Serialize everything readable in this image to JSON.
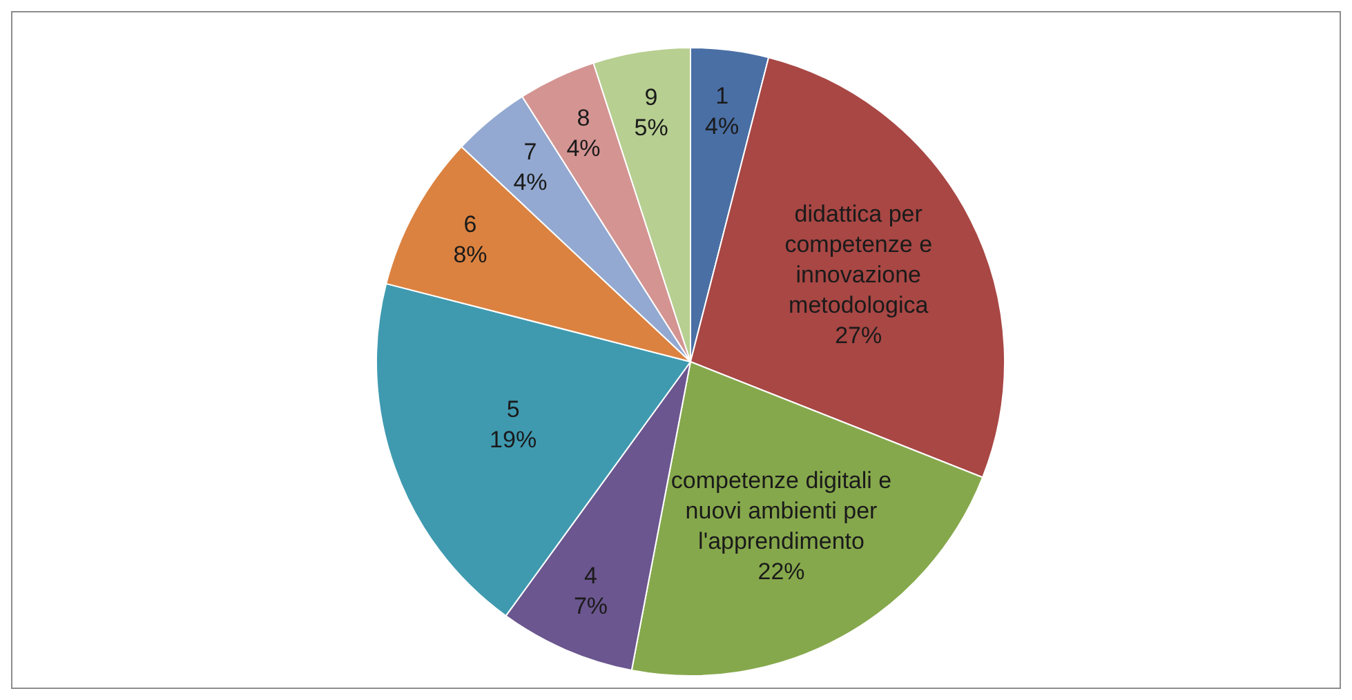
{
  "chart_data": {
    "type": "pie",
    "categories": [
      "1",
      "didattica per competenze e innovazione metodologica",
      "competenze digitali e nuovi ambienti per l'apprendimento",
      "4",
      "5",
      "6",
      "7",
      "8",
      "9"
    ],
    "values": [
      4,
      27,
      22,
      7,
      19,
      8,
      4,
      4,
      5
    ],
    "value_labels": [
      "4%",
      "27%",
      "22%",
      "7%",
      "19%",
      "8%",
      "4%",
      "4%",
      "5%"
    ],
    "colors": [
      "#4a6fa5",
      "#a84744",
      "#86a84c",
      "#6b568f",
      "#3f9ab0",
      "#db8240",
      "#93a9d1",
      "#d49492",
      "#b7cf91"
    ],
    "legend": false
  }
}
